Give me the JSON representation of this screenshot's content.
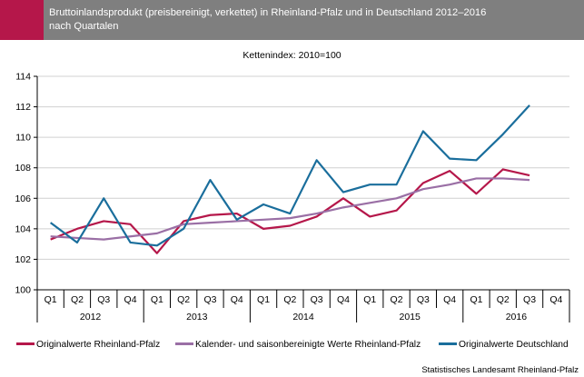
{
  "header": {
    "title_line1": "Bruttoinlandsprodukt (preisbereinigt, verkettet) in Rheinland-Pfalz und in Deutschland 2012–2016",
    "title_line2": "nach Quartalen"
  },
  "source": "Statistisches Landesamt Rheinland-Pfalz",
  "colors": {
    "header_bg": "#7f7f7f",
    "accent": "#b5174a"
  },
  "chart_data": {
    "type": "line",
    "title": "Kettenindex: 2010=100",
    "xlabel": "",
    "ylabel": "",
    "ylim": [
      100,
      114
    ],
    "yticks": [
      "100",
      "102",
      "104",
      "106",
      "108",
      "110",
      "112",
      "114"
    ],
    "grid": true,
    "legend_placement": "bottom",
    "categories": [
      "Q1",
      "Q2",
      "Q3",
      "Q4",
      "Q1",
      "Q2",
      "Q3",
      "Q4",
      "Q1",
      "Q2",
      "Q3",
      "Q4",
      "Q1",
      "Q2",
      "Q3",
      "Q4",
      "Q1",
      "Q2",
      "Q3",
      "Q4"
    ],
    "years": [
      "2012",
      "2013",
      "2014",
      "2015",
      "2016"
    ],
    "series": [
      {
        "name": "Originalwerte Rheinland-Pfalz",
        "color": "#b5174a",
        "values": [
          103.3,
          104.0,
          104.5,
          104.3,
          102.4,
          104.5,
          104.9,
          105.0,
          104.0,
          104.2,
          104.8,
          106.0,
          104.8,
          105.2,
          107.0,
          107.8,
          106.3,
          107.9,
          107.5,
          null
        ]
      },
      {
        "name": "Kalender- und saisonbereinigte Werte Rheinland-Pfalz",
        "color": "#9a6fa5",
        "values": [
          103.5,
          103.4,
          103.3,
          103.5,
          103.7,
          104.3,
          104.4,
          104.5,
          104.6,
          104.7,
          105.0,
          105.4,
          105.7,
          106.0,
          106.6,
          106.9,
          107.3,
          107.3,
          107.2,
          null
        ]
      },
      {
        "name": "Originalwerte Deutschland",
        "color": "#1a6e9c",
        "values": [
          104.4,
          103.1,
          106.0,
          103.1,
          102.9,
          104.0,
          107.2,
          104.6,
          105.6,
          105.0,
          108.5,
          106.4,
          106.9,
          106.9,
          110.4,
          108.6,
          108.5,
          110.2,
          112.1,
          null
        ]
      }
    ]
  }
}
